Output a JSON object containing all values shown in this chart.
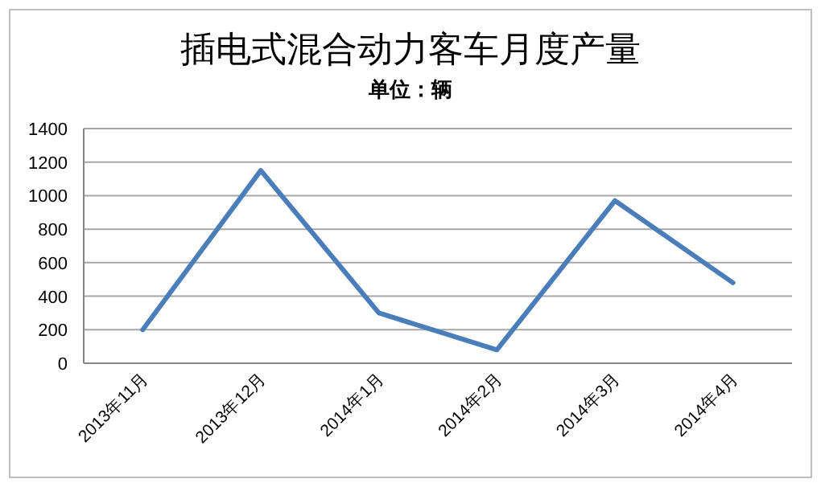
{
  "chart_data": {
    "type": "line",
    "title": "插电式混合动力客车月度产量",
    "subtitle": "单位：辆",
    "categories": [
      "2013年11月",
      "2013年12月",
      "2014年1月",
      "2014年2月",
      "2014年3月",
      "2014年4月"
    ],
    "series": [
      {
        "color": "#4a7ebb",
        "values": [
          200,
          1150,
          300,
          80,
          970,
          480
        ]
      }
    ],
    "ylim": [
      0,
      1400
    ],
    "yticks": [
      0,
      200,
      400,
      600,
      800,
      1000,
      1200,
      1400
    ],
    "grid": "y",
    "marker": "none",
    "line_style": "solid"
  }
}
